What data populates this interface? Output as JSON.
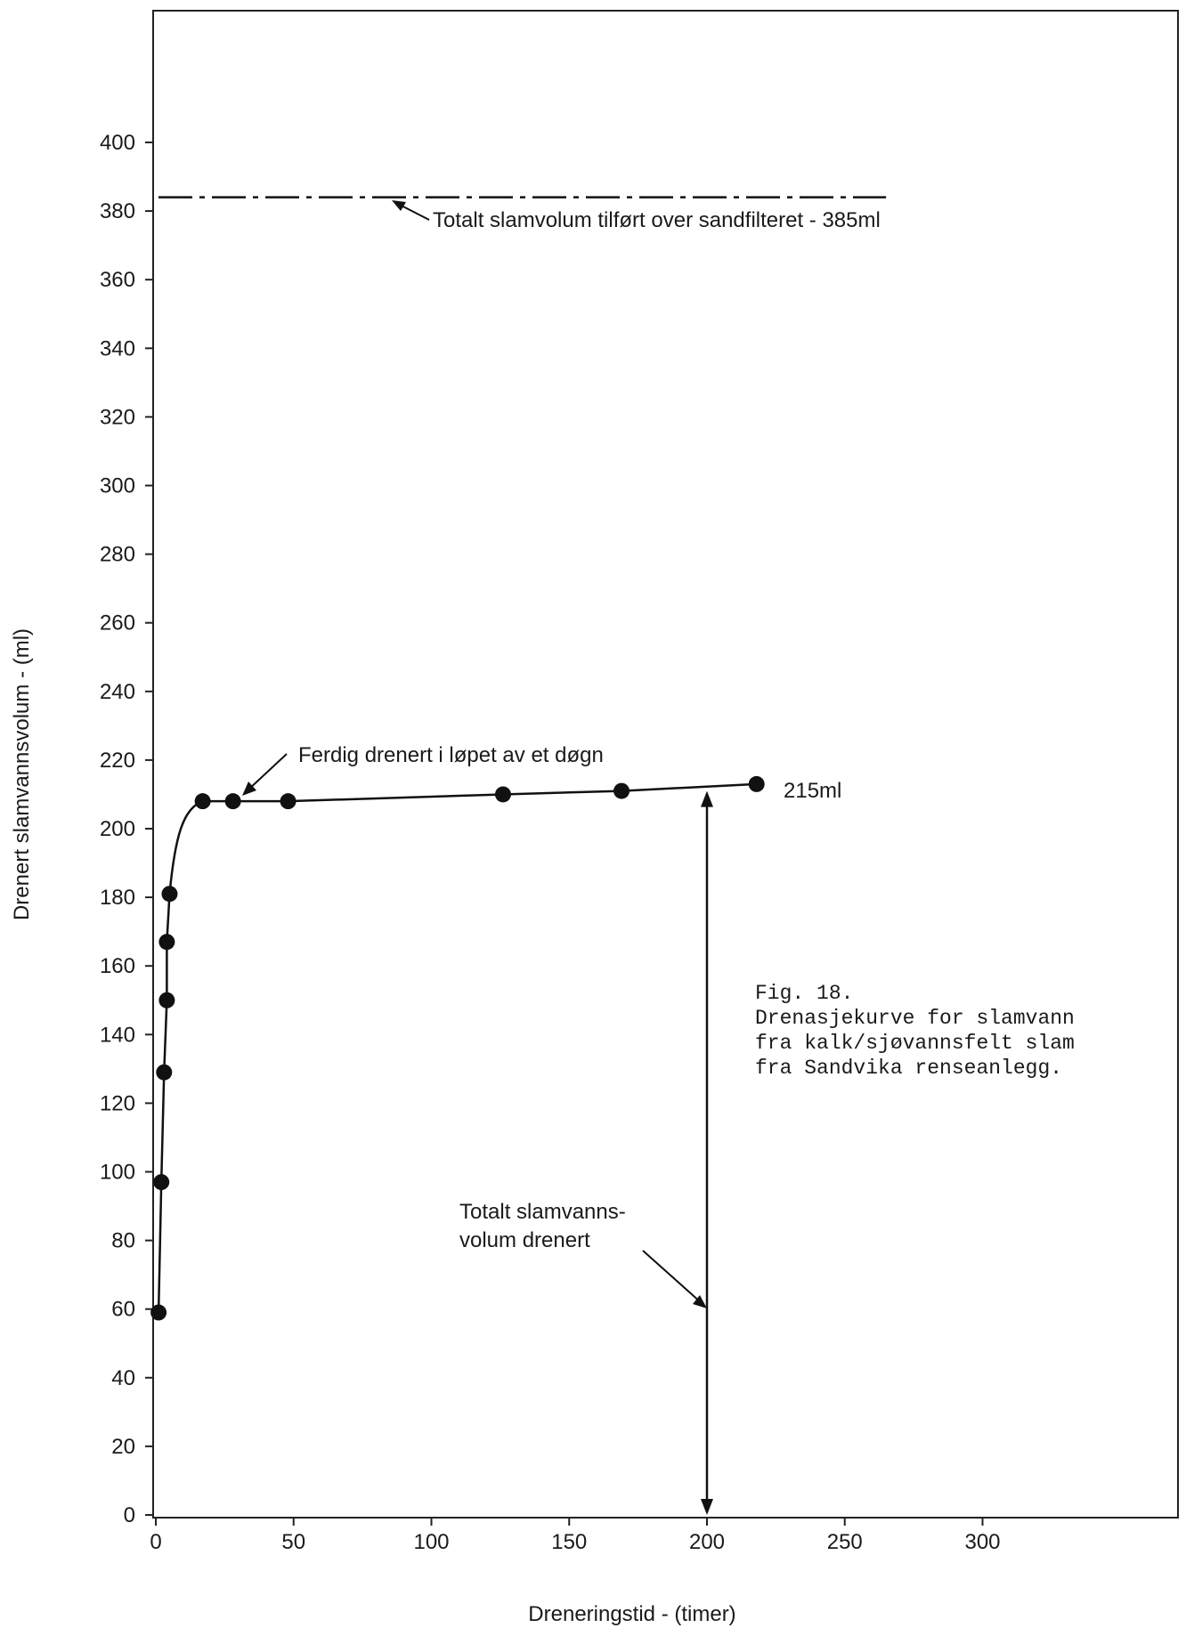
{
  "chart_data": {
    "type": "line",
    "xlabel": "Dreneringstid - (timer)",
    "ylabel": "Drenert slamvannsvolum - (ml)",
    "xlim": [
      0,
      375
    ],
    "ylim": [
      0,
      400
    ],
    "x_ticks": [
      0,
      50,
      100,
      150,
      200,
      250,
      300
    ],
    "y_ticks": [
      0,
      20,
      40,
      60,
      80,
      100,
      120,
      140,
      160,
      180,
      200,
      220,
      240,
      260,
      280,
      300,
      320,
      340,
      360,
      380,
      400
    ],
    "grid": false,
    "series": [
      {
        "values_xy": [
          [
            1,
            59
          ],
          [
            2,
            97
          ],
          [
            3,
            129
          ],
          [
            4,
            150
          ],
          [
            4,
            167
          ],
          [
            5,
            181
          ],
          [
            17,
            208
          ],
          [
            28,
            208
          ],
          [
            48,
            208
          ],
          [
            126,
            210
          ],
          [
            169,
            211
          ],
          [
            218,
            213
          ]
        ]
      }
    ],
    "reference_line": {
      "y": 384,
      "x_end": 265,
      "style": "dash-dot"
    },
    "annotations": {
      "total_sludge": "Totalt slamvolum tilført over sandfilteret - 385ml",
      "drained_day": "Ferdig drenert i løpet av et døgn",
      "final_value": "215ml",
      "total_water_line1": "Totalt slamvanns-",
      "total_water_line2": "volum drenert"
    },
    "caption": [
      "Fig. 18.",
      "Drenasjekurve for slamvann",
      "fra kalk/sjøvannsfelt slam",
      "fra Sandvika renseanlegg."
    ]
  }
}
